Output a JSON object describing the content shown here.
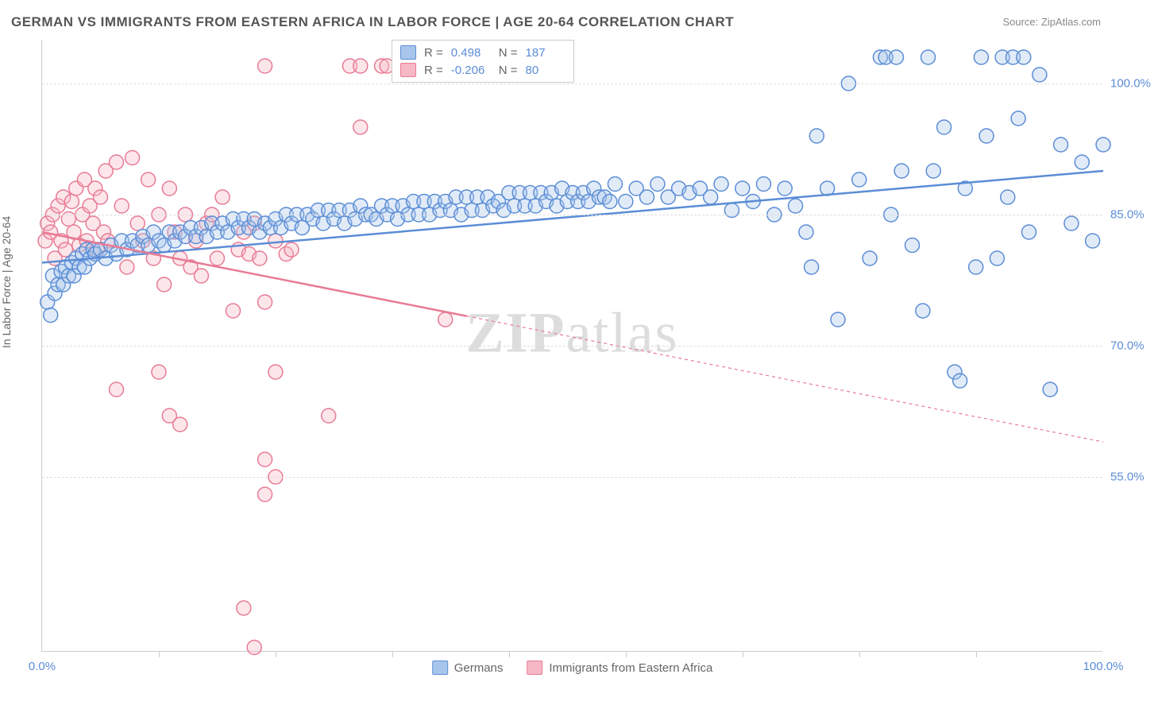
{
  "title": "GERMAN VS IMMIGRANTS FROM EASTERN AFRICA IN LABOR FORCE | AGE 20-64 CORRELATION CHART",
  "source": "Source: ZipAtlas.com",
  "y_axis_label": "In Labor Force | Age 20-64",
  "watermark": {
    "bold": "ZIP",
    "light": "atlas"
  },
  "chart": {
    "type": "scatter",
    "background_color": "#ffffff",
    "grid_color": "#dddddd",
    "axis_color": "#cccccc",
    "xlim": [
      0,
      100
    ],
    "ylim": [
      35,
      105
    ],
    "y_ticks": [
      55.0,
      70.0,
      85.0,
      100.0
    ],
    "y_tick_labels": [
      "55.0%",
      "70.0%",
      "85.0%",
      "100.0%"
    ],
    "x_ticks": [
      0,
      100
    ],
    "x_tick_labels": [
      "0.0%",
      "100.0%"
    ],
    "x_minor_ticks": [
      11,
      22,
      33,
      44,
      55,
      66,
      77,
      88
    ],
    "marker_radius": 9,
    "marker_stroke_width": 1.5,
    "marker_fill_opacity": 0.35,
    "trend_line_width": 2.5
  },
  "stats": {
    "series1": {
      "r_label": "R =",
      "r": "0.498",
      "n_label": "N =",
      "n": "187"
    },
    "series2": {
      "r_label": "R =",
      "r": "-0.206",
      "n_label": "N =",
      "n": "80"
    }
  },
  "legend": {
    "series1": "Germans",
    "series2": "Immigrants from Eastern Africa"
  },
  "series": [
    {
      "name": "Germans",
      "fill": "#a8c6ec",
      "stroke": "#5b8dd6",
      "trend": {
        "x1": 0,
        "y1": 79.5,
        "x2": 100,
        "y2": 90.0,
        "solid_until_x": 100
      },
      "points": [
        [
          0.5,
          75
        ],
        [
          0.8,
          73.5
        ],
        [
          1,
          78
        ],
        [
          1.2,
          76
        ],
        [
          1.5,
          77
        ],
        [
          1.8,
          78.5
        ],
        [
          2,
          77
        ],
        [
          2.2,
          79
        ],
        [
          2.5,
          78
        ],
        [
          2.8,
          79.5
        ],
        [
          3,
          78
        ],
        [
          3.2,
          80
        ],
        [
          3.5,
          79
        ],
        [
          3.8,
          80.5
        ],
        [
          4,
          79
        ],
        [
          4.2,
          81
        ],
        [
          4.5,
          80
        ],
        [
          4.8,
          81
        ],
        [
          5,
          80.5
        ],
        [
          5.5,
          81
        ],
        [
          6,
          80
        ],
        [
          6.5,
          81.5
        ],
        [
          7,
          80.5
        ],
        [
          7.5,
          82
        ],
        [
          8,
          81
        ],
        [
          8.5,
          82
        ],
        [
          9,
          81.5
        ],
        [
          9.5,
          82.5
        ],
        [
          10,
          81.5
        ],
        [
          10.5,
          83
        ],
        [
          11,
          82
        ],
        [
          11.5,
          81.5
        ],
        [
          12,
          83
        ],
        [
          12.5,
          82
        ],
        [
          13,
          83
        ],
        [
          13.5,
          82.5
        ],
        [
          14,
          83.5
        ],
        [
          14.5,
          82.5
        ],
        [
          15,
          83.5
        ],
        [
          15.5,
          82.5
        ],
        [
          16,
          84
        ],
        [
          16.5,
          83
        ],
        [
          17,
          84
        ],
        [
          17.5,
          83
        ],
        [
          18,
          84.5
        ],
        [
          18.5,
          83.5
        ],
        [
          19,
          84.5
        ],
        [
          19.5,
          83.5
        ],
        [
          20,
          84.5
        ],
        [
          20.5,
          83
        ],
        [
          21,
          84
        ],
        [
          21.5,
          83.5
        ],
        [
          22,
          84.5
        ],
        [
          22.5,
          83.5
        ],
        [
          23,
          85
        ],
        [
          23.5,
          84
        ],
        [
          24,
          85
        ],
        [
          24.5,
          83.5
        ],
        [
          25,
          85
        ],
        [
          25.5,
          84.5
        ],
        [
          26,
          85.5
        ],
        [
          26.5,
          84
        ],
        [
          27,
          85.5
        ],
        [
          27.5,
          84.5
        ],
        [
          28,
          85.5
        ],
        [
          28.5,
          84
        ],
        [
          29,
          85.5
        ],
        [
          29.5,
          84.5
        ],
        [
          30,
          86
        ],
        [
          30.5,
          85
        ],
        [
          31,
          85
        ],
        [
          31.5,
          84.5
        ],
        [
          32,
          86
        ],
        [
          32.5,
          85
        ],
        [
          33,
          86
        ],
        [
          33.5,
          84.5
        ],
        [
          34,
          86
        ],
        [
          34.5,
          85
        ],
        [
          35,
          86.5
        ],
        [
          35.5,
          85
        ],
        [
          36,
          86.5
        ],
        [
          36.5,
          85
        ],
        [
          37,
          86.5
        ],
        [
          37.5,
          85.5
        ],
        [
          38,
          86.5
        ],
        [
          38.5,
          85.5
        ],
        [
          39,
          87
        ],
        [
          39.5,
          85
        ],
        [
          40,
          87
        ],
        [
          40.5,
          85.5
        ],
        [
          41,
          87
        ],
        [
          41.5,
          85.5
        ],
        [
          42,
          87
        ],
        [
          42.5,
          86
        ],
        [
          43,
          86.5
        ],
        [
          43.5,
          85.5
        ],
        [
          44,
          87.5
        ],
        [
          44.5,
          86
        ],
        [
          45,
          87.5
        ],
        [
          45.5,
          86
        ],
        [
          46,
          87.5
        ],
        [
          46.5,
          86
        ],
        [
          47,
          87.5
        ],
        [
          47.5,
          86.5
        ],
        [
          48,
          87.5
        ],
        [
          48.5,
          86
        ],
        [
          49,
          88
        ],
        [
          49.5,
          86.5
        ],
        [
          50,
          87.5
        ],
        [
          50.5,
          86.5
        ],
        [
          51,
          87.5
        ],
        [
          51.5,
          86.5
        ],
        [
          52,
          88
        ],
        [
          52.5,
          87
        ],
        [
          53,
          87
        ],
        [
          53.5,
          86.5
        ],
        [
          54,
          88.5
        ],
        [
          55,
          86.5
        ],
        [
          56,
          88
        ],
        [
          57,
          87
        ],
        [
          58,
          88.5
        ],
        [
          59,
          87
        ],
        [
          60,
          88
        ],
        [
          61,
          87.5
        ],
        [
          62,
          88
        ],
        [
          63,
          87
        ],
        [
          64,
          88.5
        ],
        [
          65,
          85.5
        ],
        [
          66,
          88
        ],
        [
          67,
          86.5
        ],
        [
          68,
          88.5
        ],
        [
          69,
          85
        ],
        [
          70,
          88
        ],
        [
          71,
          86
        ],
        [
          72,
          83
        ],
        [
          72.5,
          79
        ],
        [
          73,
          94
        ],
        [
          74,
          88
        ],
        [
          75,
          73
        ],
        [
          76,
          100
        ],
        [
          77,
          89
        ],
        [
          78,
          80
        ],
        [
          79,
          103
        ],
        [
          79.5,
          103
        ],
        [
          80,
          85
        ],
        [
          80.5,
          103
        ],
        [
          81,
          90
        ],
        [
          82,
          81.5
        ],
        [
          83,
          74
        ],
        [
          83.5,
          103
        ],
        [
          84,
          90
        ],
        [
          85,
          95
        ],
        [
          86,
          67
        ],
        [
          86.5,
          66
        ],
        [
          87,
          88
        ],
        [
          88,
          79
        ],
        [
          88.5,
          103
        ],
        [
          89,
          94
        ],
        [
          90,
          80
        ],
        [
          90.5,
          103
        ],
        [
          91,
          87
        ],
        [
          91.5,
          103
        ],
        [
          92,
          96
        ],
        [
          92.5,
          103
        ],
        [
          93,
          83
        ],
        [
          94,
          101
        ],
        [
          95,
          65
        ],
        [
          96,
          93
        ],
        [
          97,
          84
        ],
        [
          98,
          91
        ],
        [
          99,
          82
        ],
        [
          100,
          93
        ]
      ]
    },
    {
      "name": "Immigrants from Eastern Africa",
      "fill": "#f5b8c4",
      "stroke": "#e87b94",
      "trend": {
        "x1": 0,
        "y1": 83.0,
        "x2": 100,
        "y2": 59.0,
        "solid_until_x": 40
      },
      "points": [
        [
          0.3,
          82
        ],
        [
          0.5,
          84
        ],
        [
          0.8,
          83
        ],
        [
          1,
          85
        ],
        [
          1.2,
          80
        ],
        [
          1.5,
          86
        ],
        [
          1.8,
          82
        ],
        [
          2,
          87
        ],
        [
          2.2,
          81
        ],
        [
          2.5,
          84.5
        ],
        [
          2.8,
          86.5
        ],
        [
          3,
          83
        ],
        [
          3.2,
          88
        ],
        [
          3.5,
          81.5
        ],
        [
          3.8,
          85
        ],
        [
          4,
          89
        ],
        [
          4.2,
          82
        ],
        [
          4.5,
          86
        ],
        [
          4.8,
          84
        ],
        [
          5,
          88
        ],
        [
          5.2,
          81
        ],
        [
          5.5,
          87
        ],
        [
          5.8,
          83
        ],
        [
          6,
          90
        ],
        [
          6.2,
          82
        ],
        [
          7,
          91
        ],
        [
          7.5,
          86
        ],
        [
          8,
          79
        ],
        [
          8.5,
          91.5
        ],
        [
          9,
          84
        ],
        [
          9.5,
          82
        ],
        [
          10,
          89
        ],
        [
          10.5,
          80
        ],
        [
          11,
          85
        ],
        [
          11.5,
          77
        ],
        [
          12,
          88
        ],
        [
          12.5,
          83
        ],
        [
          13,
          80
        ],
        [
          13.5,
          85
        ],
        [
          14,
          79
        ],
        [
          14.5,
          82
        ],
        [
          15,
          78
        ],
        [
          15.5,
          84
        ],
        [
          16,
          85
        ],
        [
          16.5,
          80
        ],
        [
          17,
          87
        ],
        [
          18,
          74
        ],
        [
          18.5,
          81
        ],
        [
          19,
          83
        ],
        [
          19.5,
          80.5
        ],
        [
          20,
          84
        ],
        [
          20.5,
          80
        ],
        [
          21,
          75
        ],
        [
          22,
          82
        ],
        [
          23,
          80.5
        ],
        [
          23.5,
          81
        ],
        [
          12,
          62
        ],
        [
          7,
          65
        ],
        [
          11,
          67
        ],
        [
          13,
          61
        ],
        [
          22,
          67
        ],
        [
          21,
          57
        ],
        [
          21,
          53
        ],
        [
          22,
          55
        ],
        [
          27,
          62
        ],
        [
          29,
          102
        ],
        [
          30,
          102
        ],
        [
          30,
          95
        ],
        [
          32,
          102
        ],
        [
          32.5,
          102
        ],
        [
          21,
          102
        ],
        [
          19,
          40
        ],
        [
          20,
          35.5
        ],
        [
          38,
          73
        ]
      ]
    }
  ]
}
